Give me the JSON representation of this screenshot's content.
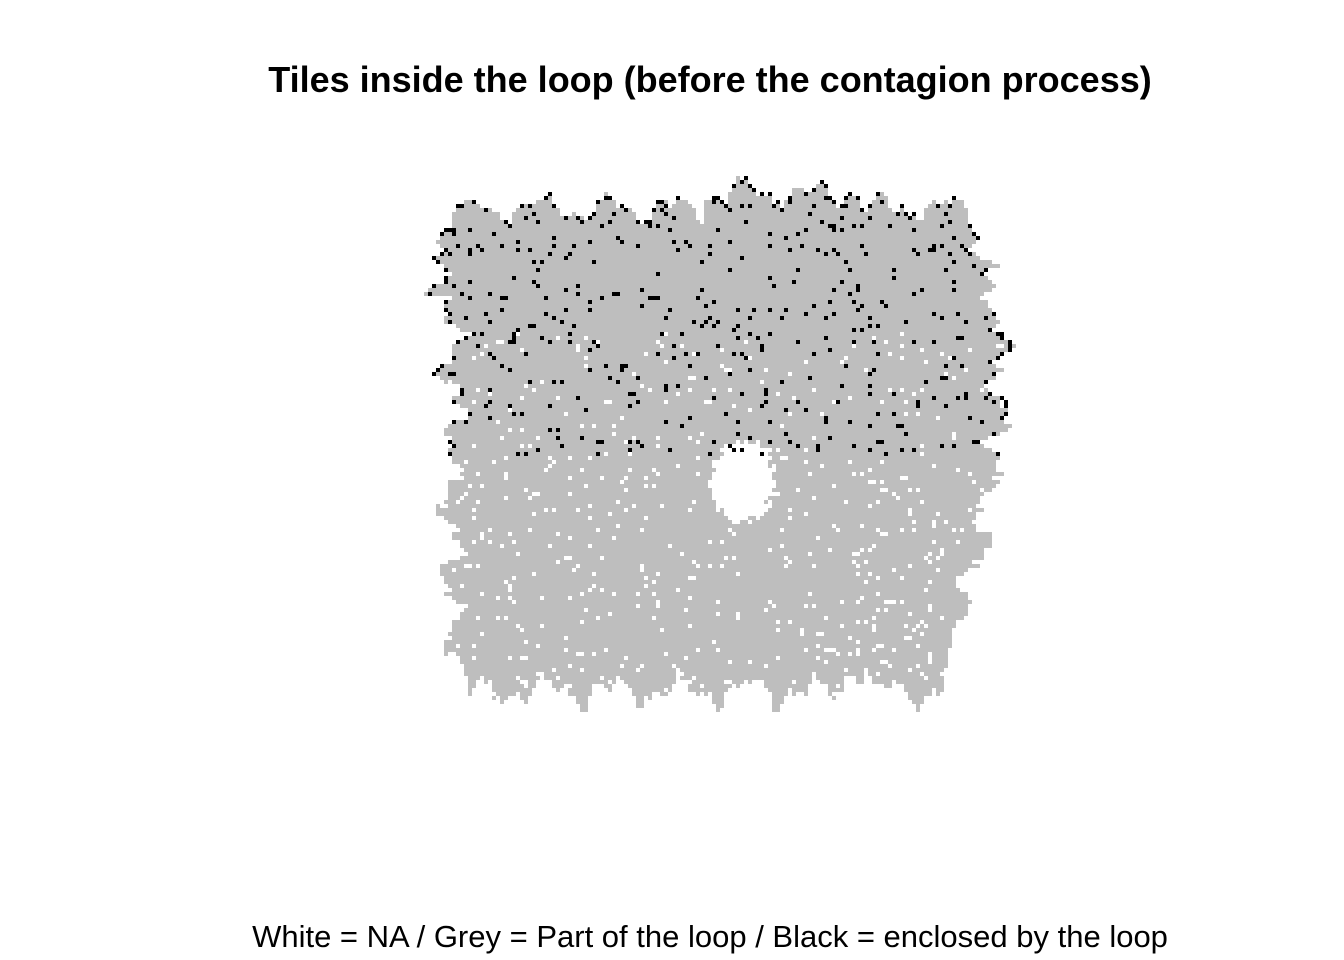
{
  "chart_data": {
    "type": "heatmap",
    "title": "Tiles inside the loop (before the contagion process)",
    "caption": "White = NA / Grey = Part of the loop / Black = enclosed by the loop",
    "legend": [
      {
        "label": "NA",
        "color": "#ffffff"
      },
      {
        "label": "Part of the loop",
        "color": "#bebebe"
      },
      {
        "label": "enclosed by the loop",
        "color": "#000000"
      }
    ],
    "grid": false,
    "axes_visible": false
  }
}
